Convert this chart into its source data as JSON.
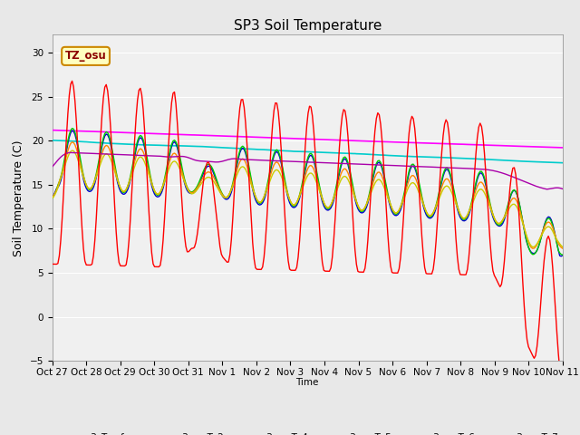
{
  "title": "SP3 Soil Temperature",
  "ylabel": "Soil Temperature (C)",
  "xlabel": "Time",
  "annotation": "TZ_osu",
  "ylim": [
    -5,
    32
  ],
  "yticks": [
    -5,
    0,
    5,
    10,
    15,
    20,
    25,
    30
  ],
  "xtick_labels": [
    "Oct 27",
    "Oct 28",
    "Oct 29",
    "Oct 30",
    "Oct 31",
    "Nov 1",
    "Nov 2",
    "Nov 3",
    "Nov 4",
    "Nov 5",
    "Nov 6",
    "Nov 7",
    "Nov 8",
    "Nov 9",
    "Nov 10",
    "Nov 11"
  ],
  "series_colors": {
    "sp3_Tsurface": "#FF0000",
    "sp3_smT_1": "#0000CC",
    "sp3_smT_2": "#00CC00",
    "sp3_smT_3": "#FF8800",
    "sp3_smT_4": "#CCCC00",
    "sp3_smT_5": "#AA00AA",
    "sp3_smT_6": "#00CCCC",
    "sp3_smT_7": "#FF00FF"
  },
  "background_color": "#E8E8E8",
  "plot_bg_color": "#F0F0F0",
  "title_fontsize": 11,
  "label_fontsize": 9,
  "tick_fontsize": 7.5
}
